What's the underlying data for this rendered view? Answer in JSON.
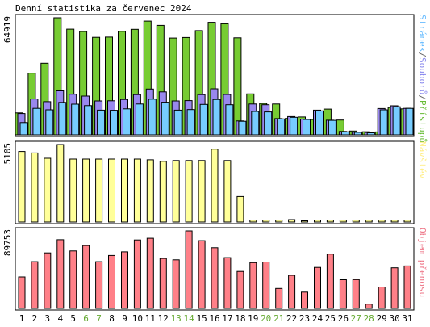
{
  "chart_data": {
    "type": "bar",
    "title": "Denní statistika za červenec 2024",
    "categories": [
      "1",
      "2",
      "3",
      "4",
      "5",
      "6",
      "7",
      "8",
      "9",
      "10",
      "11",
      "12",
      "13",
      "14",
      "15",
      "16",
      "17",
      "18",
      "19",
      "20",
      "21",
      "22",
      "23",
      "24",
      "25",
      "26",
      "27",
      "28",
      "29",
      "30",
      "31"
    ],
    "weekend_days": [
      "6",
      "7",
      "13",
      "14",
      "20",
      "21",
      "27",
      "28"
    ],
    "panels": [
      {
        "max_label": "64919",
        "ylim": [
          0,
          64919
        ],
        "side_label": {
          "parts": [
            {
              "text": "Stránek",
              "color": "#66bbff"
            },
            {
              "text": "/",
              "color": "#666666"
            },
            {
              "text": "Souborů",
              "color": "#8888ee"
            },
            {
              "text": "/",
              "color": "#666666"
            },
            {
              "text": "Přístupů",
              "color": "#66bb33"
            }
          ]
        },
        "series": [
          {
            "name": "Přístupů",
            "color": "#77cc33",
            "values": [
              12200,
              34200,
              39700,
              64919,
              58600,
              57300,
              54100,
              54200,
              57400,
              58500,
              63100,
              60700,
              53700,
              54000,
              57800,
              62400,
              61600,
              53800,
              22700,
              17400,
              17100,
              9100,
              9900,
              8500,
              14300,
              8200,
              2100,
              1700,
              1600,
              15200,
              14400
            ]
          },
          {
            "name": "Souborů",
            "color": "#9988ee",
            "values": [
              11800,
              19900,
              18400,
              24400,
              22500,
              21500,
              18800,
              18900,
              19600,
              22300,
              25400,
              23800,
              18800,
              19000,
              22300,
              25500,
              22400,
              7700,
              17100,
              16700,
              9000,
              10100,
              8700,
              13700,
              8100,
              1900,
              1500,
              1300,
              14600,
              16100,
              14700
            ]
          },
          {
            "name": "Stránek",
            "color": "#77ccff",
            "values": [
              6800,
              14700,
              13900,
              18000,
              17000,
              16200,
              13700,
              13600,
              14400,
              17100,
              19800,
              18100,
              13700,
              14000,
              16900,
              19600,
              16700,
              7500,
              13000,
              12700,
              8800,
              9700,
              8500,
              13300,
              8000,
              1700,
              1400,
              1100,
              13900,
              15600,
              14700
            ]
          }
        ]
      },
      {
        "max_label": "5105",
        "ylim": [
          0,
          5105
        ],
        "side_label": {
          "parts": [
            {
              "text": "Návštěv",
              "color": "#ffee88"
            }
          ]
        },
        "series": [
          {
            "name": "Návštěv",
            "color": "#ffff99",
            "values": [
              4650,
              4550,
              4200,
              5105,
              4150,
              4150,
              4150,
              4150,
              4150,
              4150,
              4100,
              4000,
              4050,
              4050,
              4050,
              4800,
              4050,
              1680,
              130,
              130,
              130,
              160,
              80,
              130,
              130,
              130,
              130,
              130,
              130,
              130,
              130
            ]
          }
        ]
      },
      {
        "max_label": "89753",
        "ylim": [
          0,
          89753
        ],
        "side_label": {
          "parts": [
            {
              "text": "Objem přenosu",
              "color": "#ee7788"
            }
          ]
        },
        "series": [
          {
            "name": "Objem přenosu",
            "color": "#ff8088",
            "values": [
              36500,
              54100,
              64300,
              79600,
              66600,
              72800,
              54100,
              61300,
              65500,
              79300,
              81200,
              57900,
              56300,
              89753,
              78400,
              70300,
              58800,
              42800,
              53000,
              53800,
              23100,
              38300,
              18900,
              47500,
              62900,
              33200,
              33400,
              5000,
              24800,
              47000,
              49200
            ]
          }
        ]
      }
    ]
  }
}
